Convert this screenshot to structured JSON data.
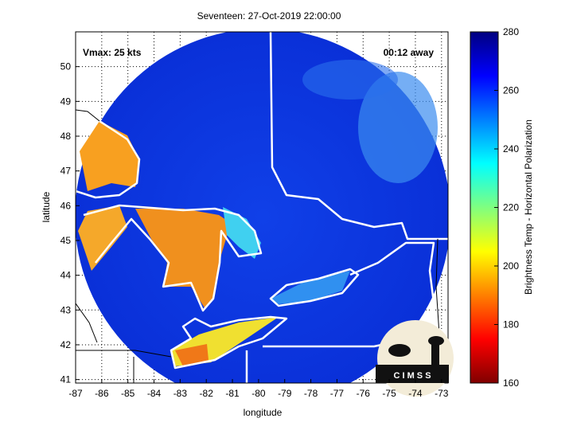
{
  "chart_data": {
    "type": "map",
    "title": "Seventeen: 27-Oct-2019 22:00:00",
    "annotations": [
      "Vmax: 25 kts",
      "00:12 away"
    ],
    "xlabel": "longitude",
    "ylabel": "latitude",
    "xlim": [
      -87,
      -72.75
    ],
    "xticks": [
      -87,
      -86,
      -85,
      -84,
      -83,
      -82,
      -81,
      -80,
      -79,
      -78,
      -77,
      -76,
      -75,
      -74,
      -73
    ],
    "ylim": [
      40.9,
      51
    ],
    "yticks": [
      41,
      42,
      43,
      44,
      45,
      46,
      47,
      48,
      49,
      50
    ],
    "colorbar_label": "Brightness Temp - Horizontal Polarization",
    "clim": [
      160,
      280
    ],
    "cticks": [
      160,
      180,
      200,
      220,
      240,
      260,
      280
    ],
    "logo": "C I M S S",
    "grid": true
  }
}
